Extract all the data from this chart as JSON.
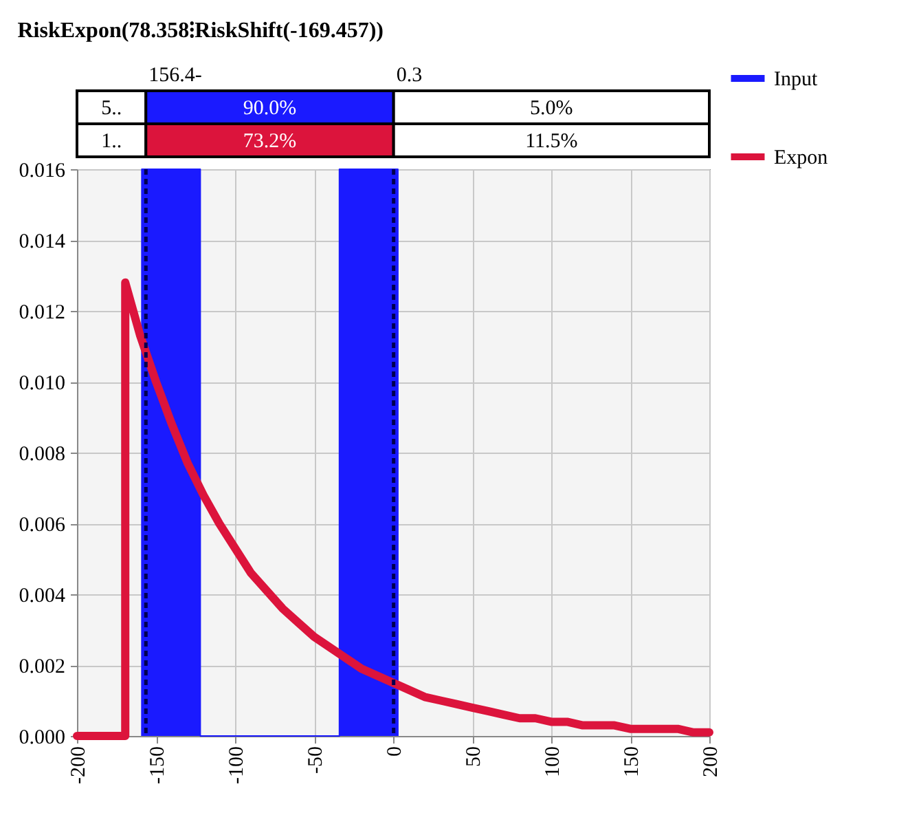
{
  "chart_data": {
    "type": "line",
    "title": "RiskExpon(78.358⁝RiskShift(-169.457))",
    "series": [
      {
        "name": "Input",
        "type": "area",
        "color": "#1a1aff",
        "x": [
          -159,
          -159,
          -122,
          -122,
          -34,
          -34,
          3,
          3
        ],
        "values": [
          0,
          0.016,
          0.016,
          0,
          0,
          0.016,
          0.016,
          0
        ]
      },
      {
        "name": "Expon",
        "type": "line",
        "color": "#dc143c",
        "x": [
          -200,
          -169.457,
          -169.457,
          -160,
          -150,
          -140,
          -130,
          -120,
          -110,
          -100,
          -90,
          -80,
          -70,
          -60,
          -50,
          -40,
          -30,
          -20,
          -10,
          0,
          10,
          20,
          30,
          40,
          50,
          60,
          70,
          80,
          90,
          100,
          110,
          120,
          130,
          140,
          150,
          160,
          170,
          180,
          190,
          200
        ],
        "values": [
          0,
          0,
          0.0128,
          0.0113,
          0.01,
          0.0088,
          0.0077,
          0.0068,
          0.006,
          0.0053,
          0.0046,
          0.0041,
          0.0036,
          0.0032,
          0.0028,
          0.0025,
          0.0022,
          0.0019,
          0.0017,
          0.0015,
          0.0013,
          0.0011,
          0.001,
          0.0009,
          0.0008,
          0.0007,
          0.0006,
          0.0005,
          0.0005,
          0.0004,
          0.0004,
          0.0003,
          0.0003,
          0.0003,
          0.0002,
          0.0002,
          0.0002,
          0.0002,
          0.0001,
          0.0001
        ]
      }
    ],
    "xlim": [
      -200,
      200
    ],
    "xticks": [
      -200,
      -150,
      -100,
      -50,
      0,
      50,
      100,
      150,
      200
    ],
    "ylim": [
      0,
      0.016
    ],
    "yticks": [
      {
        "value": 0,
        "label": "0.000"
      },
      {
        "value": 0.002,
        "label": "0.002"
      },
      {
        "value": 0.004,
        "label": "0.004"
      },
      {
        "value": 0.006,
        "label": "0.006"
      },
      {
        "value": 0.008,
        "label": "0.008"
      },
      {
        "value": 0.01,
        "label": "0.010"
      },
      {
        "value": 0.012,
        "label": "0.012"
      },
      {
        "value": 0.014,
        "label": "0.014"
      },
      {
        "value": 0.016,
        "label": "0.016"
      }
    ],
    "ref_lines": [
      {
        "axis": "x",
        "value": -156.4,
        "color": "#000050",
        "line_style": "dashed"
      },
      {
        "axis": "x",
        "value": 0.3,
        "color": "#000050",
        "line_style": "dashed"
      }
    ],
    "annotations": [
      "156.4-",
      "0.3",
      "5..",
      "90.0%",
      "5.0%",
      "1..",
      "73.2%",
      "11.5%"
    ],
    "grid": true,
    "legend": "right"
  }
}
